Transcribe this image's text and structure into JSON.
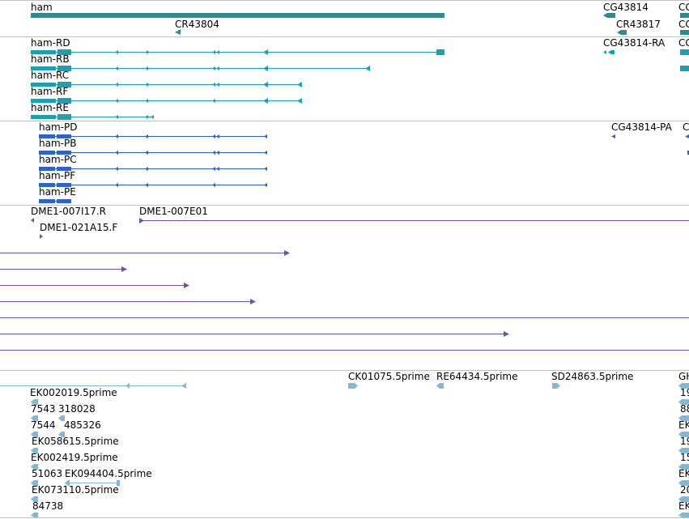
{
  "colors": {
    "gene": "#2a8c8c",
    "transcript": "#1aa0b0",
    "protein": "#2e64c8",
    "clone": "#7050a0",
    "est": "#80b8d8",
    "separator": "#c0c0c0"
  },
  "tracks": {
    "gene": {
      "ham": "ham",
      "cr43804": "CR43804",
      "cg43814": "CG43814",
      "cr43817": "CR43817",
      "edge": "CG"
    },
    "transcripts": {
      "ham_rd": "ham-RD",
      "ham_rb": "ham-RB",
      "ham_rc": "ham-RC",
      "ham_rf": "ham-RF",
      "ham_re": "ham-RE",
      "cg43814_ra": "CG43814-RA",
      "edge": "CG"
    },
    "proteins": {
      "ham_pd": "ham-PD",
      "ham_pb": "ham-PB",
      "ham_pc": "ham-PC",
      "ham_pf": "ham-PF",
      "ham_pe": "ham-PE",
      "cg43814_pa": "CG43814-PA",
      "edge": "C"
    },
    "clones": {
      "dme1_007i17": "DME1-007I17.R",
      "dme1_007e01": "DME1-007E01",
      "dme1_021a15": "DME1-021A15.F"
    },
    "ests": {
      "ek002019": "EK002019.5prime",
      "e7543": "7543",
      "e318028": "318028",
      "e7544": "7544",
      "e485326": "485326",
      "ek058615": "EK058615.5prime",
      "ek002419": "EK002419.5prime",
      "e51063": "51063",
      "ek094404": "EK094404.5prime",
      "ek073110": "EK073110.5prime",
      "e84738": "84738",
      "ck01075": "CK01075.5prime",
      "re64434": "RE64434.5prime",
      "sd24863": "SD24863.5prime",
      "edge_gh": "GH",
      "edge_19a": "19",
      "edge_88": "88",
      "edge_ek1": "EK",
      "edge_19b": "19",
      "edge_15": "15",
      "edge_ek2": "EK",
      "edge_20": "20",
      "edge_ek3": "EK"
    }
  }
}
